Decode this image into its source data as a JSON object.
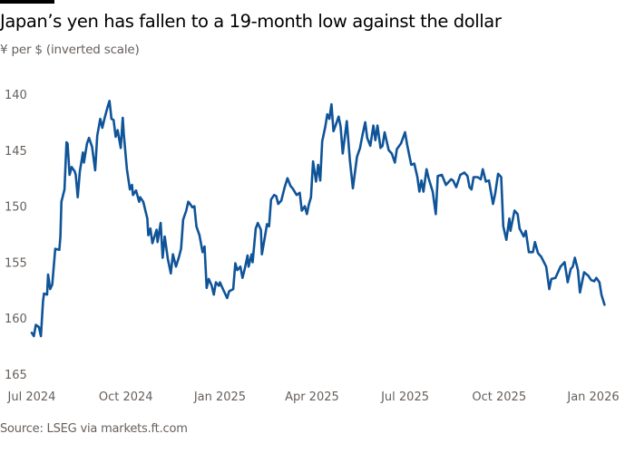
{
  "header": {
    "title": "Japan’s yen has fallen to a 19-month low against the dollar",
    "subtitle": "¥ per $ (inverted scale)"
  },
  "footer": {
    "source": "Source: LSEG via markets.ft.com"
  },
  "colors": {
    "line": "#0f5499",
    "text": "#33302e",
    "muted": "#66605c",
    "topbar": "#000000"
  },
  "chart_data": {
    "type": "line",
    "title": "Japan’s yen has fallen to a 19-month low against the dollar",
    "ylabel": "¥ per $ (inverted scale)",
    "xlabel": "",
    "ylim": [
      140,
      165
    ],
    "y_inverted": true,
    "grid": false,
    "legend": "none",
    "y_ticks": [
      140,
      145,
      150,
      155,
      160,
      165
    ],
    "x_ticks": [
      {
        "date": "2024-07-01",
        "label": "Jul 2024"
      },
      {
        "date": "2024-10-01",
        "label": "Oct 2024"
      },
      {
        "date": "2025-01-01",
        "label": "Jan 2025"
      },
      {
        "date": "2025-04-01",
        "label": "Apr 2025"
      },
      {
        "date": "2025-07-01",
        "label": "Jul 2025"
      },
      {
        "date": "2025-10-01",
        "label": "Oct 2025"
      },
      {
        "date": "2026-01-01",
        "label": "Jan 2026"
      }
    ],
    "series": [
      {
        "points": [
          [
            "2024-07-01",
            161.3
          ],
          [
            "2024-07-03",
            161.6
          ],
          [
            "2024-07-05",
            160.6
          ],
          [
            "2024-07-08",
            160.8
          ],
          [
            "2024-07-10",
            161.6
          ],
          [
            "2024-07-12",
            158.5
          ],
          [
            "2024-07-13",
            157.8
          ],
          [
            "2024-07-16",
            157.9
          ],
          [
            "2024-07-17",
            156.1
          ],
          [
            "2024-07-19",
            157.4
          ],
          [
            "2024-07-21",
            157.0
          ],
          [
            "2024-07-24",
            153.8
          ],
          [
            "2024-07-28",
            153.9
          ],
          [
            "2024-07-29",
            152.7
          ],
          [
            "2024-07-30",
            149.6
          ],
          [
            "2024-08-02",
            148.5
          ],
          [
            "2024-08-04",
            144.3
          ],
          [
            "2024-08-05",
            144.4
          ],
          [
            "2024-08-07",
            147.2
          ],
          [
            "2024-08-09",
            146.5
          ],
          [
            "2024-08-12",
            146.9
          ],
          [
            "2024-08-13",
            147.2
          ],
          [
            "2024-08-15",
            149.2
          ],
          [
            "2024-08-17",
            146.9
          ],
          [
            "2024-08-20",
            145.2
          ],
          [
            "2024-08-21",
            146.1
          ],
          [
            "2024-08-24",
            144.4
          ],
          [
            "2024-08-26",
            143.9
          ],
          [
            "2024-08-29",
            144.7
          ],
          [
            "2024-09-01",
            146.8
          ],
          [
            "2024-09-03",
            143.7
          ],
          [
            "2024-09-06",
            142.2
          ],
          [
            "2024-09-08",
            143.0
          ],
          [
            "2024-09-10",
            142.2
          ],
          [
            "2024-09-13",
            141.2
          ],
          [
            "2024-09-15",
            140.6
          ],
          [
            "2024-09-17",
            142.2
          ],
          [
            "2024-09-19",
            142.3
          ],
          [
            "2024-09-21",
            143.8
          ],
          [
            "2024-09-23",
            143.2
          ],
          [
            "2024-09-26",
            144.8
          ],
          [
            "2024-09-28",
            142.1
          ],
          [
            "2024-09-29",
            143.6
          ],
          [
            "2024-10-02",
            146.7
          ],
          [
            "2024-10-05",
            148.5
          ],
          [
            "2024-10-07",
            148.1
          ],
          [
            "2024-10-08",
            149.0
          ],
          [
            "2024-10-11",
            148.6
          ],
          [
            "2024-10-14",
            149.6
          ],
          [
            "2024-10-15",
            149.2
          ],
          [
            "2024-10-18",
            149.6
          ],
          [
            "2024-10-22",
            151.1
          ],
          [
            "2024-10-23",
            152.6
          ],
          [
            "2024-10-25",
            152.0
          ],
          [
            "2024-10-27",
            153.3
          ],
          [
            "2024-10-31",
            152.1
          ],
          [
            "2024-11-01",
            153.2
          ],
          [
            "2024-11-04",
            151.5
          ],
          [
            "2024-11-06",
            154.6
          ],
          [
            "2024-11-08",
            152.7
          ],
          [
            "2024-11-11",
            154.7
          ],
          [
            "2024-11-14",
            156.0
          ],
          [
            "2024-11-16",
            154.3
          ],
          [
            "2024-11-19",
            155.4
          ],
          [
            "2024-11-22",
            154.5
          ],
          [
            "2024-11-24",
            153.8
          ],
          [
            "2024-11-26",
            151.2
          ],
          [
            "2024-11-29",
            150.4
          ],
          [
            "2024-12-01",
            149.6
          ],
          [
            "2024-12-02",
            149.7
          ],
          [
            "2024-12-05",
            150.1
          ],
          [
            "2024-12-07",
            150.0
          ],
          [
            "2024-12-09",
            151.8
          ],
          [
            "2024-12-12",
            152.6
          ],
          [
            "2024-12-15",
            154.1
          ],
          [
            "2024-12-17",
            153.6
          ],
          [
            "2024-12-19",
            157.3
          ],
          [
            "2024-12-21",
            156.5
          ],
          [
            "2024-12-24",
            157.1
          ],
          [
            "2024-12-26",
            157.9
          ],
          [
            "2024-12-28",
            156.8
          ],
          [
            "2024-12-31",
            157.1
          ],
          [
            "2025-01-01",
            156.8
          ],
          [
            "2025-01-04",
            157.4
          ],
          [
            "2025-01-08",
            158.2
          ],
          [
            "2025-01-10",
            157.6
          ],
          [
            "2025-01-14",
            157.4
          ],
          [
            "2025-01-16",
            155.1
          ],
          [
            "2025-01-18",
            155.7
          ],
          [
            "2025-01-21",
            155.4
          ],
          [
            "2025-01-23",
            156.4
          ],
          [
            "2025-01-25",
            155.7
          ],
          [
            "2025-01-28",
            154.4
          ],
          [
            "2025-01-29",
            155.4
          ],
          [
            "2025-02-01",
            154.3
          ],
          [
            "2025-02-02",
            155.0
          ],
          [
            "2025-02-05",
            152.0
          ],
          [
            "2025-02-07",
            151.5
          ],
          [
            "2025-02-10",
            152.1
          ],
          [
            "2025-02-11",
            154.3
          ],
          [
            "2025-02-14",
            152.7
          ],
          [
            "2025-02-16",
            151.6
          ],
          [
            "2025-02-18",
            151.8
          ],
          [
            "2025-02-20",
            149.4
          ],
          [
            "2025-02-23",
            149.0
          ],
          [
            "2025-02-25",
            149.1
          ],
          [
            "2025-02-27",
            149.8
          ],
          [
            "2025-03-02",
            149.5
          ],
          [
            "2025-03-05",
            148.4
          ],
          [
            "2025-03-08",
            147.5
          ],
          [
            "2025-03-11",
            148.2
          ],
          [
            "2025-03-13",
            148.4
          ],
          [
            "2025-03-17",
            149.0
          ],
          [
            "2025-03-20",
            148.8
          ],
          [
            "2025-03-22",
            150.4
          ],
          [
            "2025-03-25",
            150.0
          ],
          [
            "2025-03-27",
            150.7
          ],
          [
            "2025-03-29",
            149.8
          ],
          [
            "2025-03-31",
            149.2
          ],
          [
            "2025-04-02",
            146.0
          ],
          [
            "2025-04-05",
            147.8
          ],
          [
            "2025-04-07",
            146.3
          ],
          [
            "2025-04-09",
            147.7
          ],
          [
            "2025-04-11",
            144.2
          ],
          [
            "2025-04-14",
            142.9
          ],
          [
            "2025-04-16",
            141.8
          ],
          [
            "2025-04-18",
            142.2
          ],
          [
            "2025-04-20",
            140.9
          ],
          [
            "2025-04-22",
            143.3
          ],
          [
            "2025-04-24",
            142.8
          ],
          [
            "2025-04-27",
            142.0
          ],
          [
            "2025-04-29",
            142.9
          ],
          [
            "2025-05-01",
            145.3
          ],
          [
            "2025-05-05",
            142.4
          ],
          [
            "2025-05-08",
            145.9
          ],
          [
            "2025-05-11",
            148.4
          ],
          [
            "2025-05-15",
            145.6
          ],
          [
            "2025-05-18",
            144.8
          ],
          [
            "2025-05-20",
            143.8
          ],
          [
            "2025-05-23",
            142.5
          ],
          [
            "2025-05-25",
            143.9
          ],
          [
            "2025-05-28",
            144.6
          ],
          [
            "2025-05-31",
            142.8
          ],
          [
            "2025-06-02",
            144.1
          ],
          [
            "2025-06-04",
            142.8
          ],
          [
            "2025-06-07",
            144.8
          ],
          [
            "2025-06-09",
            144.6
          ],
          [
            "2025-06-11",
            143.4
          ],
          [
            "2025-06-15",
            145.0
          ],
          [
            "2025-06-18",
            145.3
          ],
          [
            "2025-06-21",
            146.1
          ],
          [
            "2025-06-23",
            144.9
          ],
          [
            "2025-06-27",
            144.4
          ],
          [
            "2025-07-01",
            143.4
          ],
          [
            "2025-07-03",
            144.5
          ],
          [
            "2025-07-07",
            146.3
          ],
          [
            "2025-07-10",
            146.2
          ],
          [
            "2025-07-13",
            147.4
          ],
          [
            "2025-07-15",
            148.7
          ],
          [
            "2025-07-17",
            147.7
          ],
          [
            "2025-07-19",
            148.7
          ],
          [
            "2025-07-22",
            146.7
          ],
          [
            "2025-07-24",
            147.5
          ],
          [
            "2025-07-28",
            148.7
          ],
          [
            "2025-07-31",
            150.7
          ],
          [
            "2025-08-02",
            147.3
          ],
          [
            "2025-08-06",
            147.2
          ],
          [
            "2025-08-10",
            148.1
          ],
          [
            "2025-08-15",
            147.6
          ],
          [
            "2025-08-17",
            147.7
          ],
          [
            "2025-08-20",
            148.3
          ],
          [
            "2025-08-24",
            147.2
          ],
          [
            "2025-08-28",
            147.0
          ],
          [
            "2025-08-31",
            147.3
          ],
          [
            "2025-09-02",
            148.3
          ],
          [
            "2025-09-04",
            148.5
          ],
          [
            "2025-09-06",
            147.4
          ],
          [
            "2025-09-10",
            147.4
          ],
          [
            "2025-09-13",
            147.6
          ],
          [
            "2025-09-15",
            146.7
          ],
          [
            "2025-09-18",
            147.8
          ],
          [
            "2025-09-21",
            147.7
          ],
          [
            "2025-09-25",
            149.8
          ],
          [
            "2025-09-27",
            148.9
          ],
          [
            "2025-09-30",
            147.1
          ],
          [
            "2025-10-03",
            147.4
          ],
          [
            "2025-10-05",
            151.8
          ],
          [
            "2025-10-08",
            153.0
          ],
          [
            "2025-10-11",
            151.1
          ],
          [
            "2025-10-12",
            152.2
          ],
          [
            "2025-10-16",
            150.4
          ],
          [
            "2025-10-19",
            150.7
          ],
          [
            "2025-10-21",
            152.0
          ],
          [
            "2025-10-25",
            152.7
          ],
          [
            "2025-10-27",
            152.2
          ],
          [
            "2025-10-30",
            154.1
          ],
          [
            "2025-11-03",
            154.1
          ],
          [
            "2025-11-05",
            153.2
          ],
          [
            "2025-11-08",
            154.2
          ],
          [
            "2025-11-11",
            154.5
          ],
          [
            "2025-11-16",
            155.4
          ],
          [
            "2025-11-19",
            157.4
          ],
          [
            "2025-11-21",
            156.5
          ],
          [
            "2025-11-25",
            156.4
          ],
          [
            "2025-11-27",
            156.0
          ],
          [
            "2025-11-30",
            155.4
          ],
          [
            "2025-12-04",
            155.0
          ],
          [
            "2025-12-07",
            156.8
          ],
          [
            "2025-12-10",
            155.6
          ],
          [
            "2025-12-12",
            155.4
          ],
          [
            "2025-12-14",
            154.6
          ],
          [
            "2025-12-17",
            155.7
          ],
          [
            "2025-12-19",
            157.7
          ],
          [
            "2025-12-23",
            155.9
          ],
          [
            "2025-12-27",
            156.2
          ],
          [
            "2025-12-30",
            156.6
          ],
          [
            "2026-01-02",
            156.7
          ],
          [
            "2026-01-04",
            156.4
          ],
          [
            "2026-01-07",
            156.8
          ],
          [
            "2026-01-09",
            157.9
          ],
          [
            "2026-01-12",
            158.8
          ]
        ]
      }
    ]
  }
}
